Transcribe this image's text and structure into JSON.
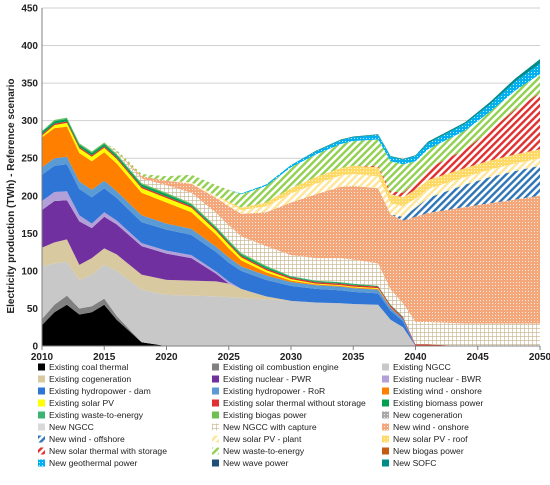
{
  "chart_data": {
    "type": "area",
    "title": "",
    "xlabel": "",
    "ylabel": "Electricity production (TWh) - Reference scenario",
    "xlim": [
      2010,
      2050
    ],
    "ylim": [
      0,
      450
    ],
    "x_ticks": [
      "2010",
      "2015",
      "2020",
      "2025",
      "2030",
      "2035",
      "2040",
      "2045",
      "2050"
    ],
    "y_ticks": [
      "0",
      "50",
      "100",
      "150",
      "200",
      "250",
      "300",
      "350",
      "400",
      "450"
    ],
    "grid": "horizontal",
    "legend_position": "bottom",
    "years": [
      2010,
      2011,
      2012,
      2013,
      2014,
      2015,
      2016,
      2018,
      2020,
      2022,
      2024,
      2025,
      2026,
      2028,
      2030,
      2032,
      2034,
      2035,
      2037,
      2038,
      2039,
      2040,
      2041,
      2044,
      2046,
      2048,
      2050
    ],
    "series": [
      {
        "name": "Existing coal thermal",
        "color": "#000000",
        "pattern": "solid",
        "values": [
          28,
          45,
          55,
          42,
          45,
          55,
          35,
          5,
          0,
          0,
          0,
          0,
          0,
          0,
          0,
          0,
          0,
          0,
          0,
          0,
          0,
          0,
          0,
          0,
          0,
          0,
          0
        ]
      },
      {
        "name": "Existing oil combustion engine",
        "color": "#808080",
        "pattern": "solid",
        "values": [
          8,
          10,
          12,
          8,
          8,
          8,
          5,
          0,
          0,
          0,
          0,
          0,
          0,
          0,
          0,
          0,
          0,
          0,
          0,
          0,
          0,
          0,
          0,
          0,
          0,
          0,
          0
        ]
      },
      {
        "name": "Existing NGCC",
        "color": "#c8c8c8",
        "pattern": "solid",
        "values": [
          70,
          55,
          45,
          38,
          42,
          45,
          60,
          70,
          68,
          67,
          66,
          65,
          64,
          62,
          60,
          58,
          57,
          56,
          55,
          35,
          25,
          0,
          0,
          0,
          0,
          0,
          0
        ]
      },
      {
        "name": "Existing cogeneration",
        "color": "#d9c9a0",
        "pattern": "solid",
        "values": [
          25,
          28,
          30,
          20,
          22,
          22,
          22,
          20,
          20,
          20,
          20,
          18,
          12,
          4,
          0,
          0,
          0,
          0,
          0,
          0,
          0,
          0,
          0,
          0,
          0,
          0,
          0
        ]
      },
      {
        "name": "Existing nuclear - PWR",
        "color": "#7030a0",
        "pattern": "solid",
        "values": [
          50,
          55,
          52,
          58,
          40,
          42,
          40,
          38,
          35,
          30,
          10,
          0,
          0,
          0,
          0,
          0,
          0,
          0,
          0,
          0,
          0,
          0,
          0,
          0,
          0,
          0,
          0
        ]
      },
      {
        "name": "Existing nuclear - BWR",
        "color": "#b4a0d8",
        "pattern": "solid",
        "values": [
          12,
          12,
          12,
          8,
          6,
          6,
          5,
          4,
          4,
          4,
          3,
          3,
          0,
          0,
          0,
          0,
          0,
          0,
          0,
          0,
          0,
          0,
          0,
          0,
          0,
          0,
          0
        ]
      },
      {
        "name": "Existing hydropower - dam",
        "color": "#2e75d6",
        "pattern": "solid",
        "values": [
          35,
          35,
          36,
          35,
          35,
          32,
          30,
          28,
          28,
          27,
          26,
          25,
          24,
          22,
          20,
          18,
          17,
          16,
          15,
          12,
          8,
          0,
          0,
          0,
          0,
          0,
          0
        ]
      },
      {
        "name": "Existing hydropower - RoR",
        "color": "#5b9bd5",
        "pattern": "solid",
        "values": [
          10,
          10,
          10,
          10,
          10,
          10,
          9,
          9,
          8,
          8,
          7,
          7,
          6,
          6,
          5,
          5,
          5,
          5,
          5,
          4,
          3,
          0,
          0,
          0,
          0,
          0,
          0
        ]
      },
      {
        "name": "Existing wind - onshore",
        "color": "#ff7f00",
        "pattern": "solid",
        "values": [
          40,
          40,
          40,
          38,
          38,
          38,
          37,
          30,
          28,
          22,
          16,
          12,
          8,
          4,
          2,
          1,
          1,
          1,
          1,
          1,
          0,
          0,
          0,
          0,
          0,
          0,
          0
        ]
      },
      {
        "name": "Existing solar PV",
        "color": "#ffff00",
        "pattern": "solid",
        "values": [
          2,
          4,
          5,
          6,
          6,
          6,
          6,
          6,
          6,
          6,
          5,
          5,
          4,
          3,
          2,
          1,
          1,
          1,
          1,
          0,
          0,
          0,
          0,
          0,
          0,
          0,
          0
        ]
      },
      {
        "name": "Existing solar thermal without storage",
        "color": "#e03030",
        "pattern": "solid",
        "values": [
          2,
          2,
          2,
          2,
          2,
          2,
          2,
          2,
          2,
          2,
          2,
          2,
          2,
          2,
          2,
          2,
          2,
          2,
          2,
          2,
          2,
          2,
          2,
          0,
          0,
          0,
          0
        ]
      },
      {
        "name": "Existing biomass power",
        "color": "#00a050",
        "pattern": "solid",
        "values": [
          3,
          3,
          3,
          3,
          3,
          3,
          3,
          3,
          3,
          2,
          2,
          2,
          2,
          2,
          1,
          1,
          1,
          1,
          1,
          1,
          1,
          0,
          0,
          0,
          0,
          0,
          0
        ]
      },
      {
        "name": "Existing waste-to-energy",
        "color": "#3cb371",
        "pattern": "solid",
        "values": [
          1,
          1,
          1,
          1,
          1,
          1,
          1,
          1,
          1,
          1,
          1,
          1,
          1,
          1,
          1,
          1,
          1,
          1,
          0,
          0,
          0,
          0,
          0,
          0,
          0,
          0,
          0
        ]
      },
      {
        "name": "Existing biogas power",
        "color": "#70c050",
        "pattern": "solid",
        "values": [
          0,
          1,
          1,
          1,
          1,
          1,
          1,
          1,
          1,
          1,
          1,
          1,
          1,
          1,
          0,
          0,
          0,
          0,
          0,
          0,
          0,
          0,
          0,
          0,
          0,
          0,
          0
        ]
      },
      {
        "name": "New cogeneration",
        "color": "#a9a9a9",
        "pattern": "dots",
        "values": [
          0,
          0,
          0,
          0,
          0,
          0,
          0,
          0,
          0,
          0,
          0,
          0,
          0,
          0,
          0,
          0,
          0,
          0,
          0,
          0,
          0,
          0,
          0,
          0,
          0,
          0,
          0
        ]
      },
      {
        "name": "New NGCC",
        "color": "#d9d9d9",
        "pattern": "solid",
        "values": [
          0,
          0,
          0,
          0,
          0,
          0,
          0,
          0,
          0,
          0,
          0,
          0,
          0,
          0,
          0,
          0,
          0,
          0,
          0,
          0,
          0,
          0,
          0,
          0,
          0,
          0,
          0
        ]
      },
      {
        "name": "New NGCC with capture",
        "color": "#c4b28a",
        "pattern": "grid",
        "values": [
          0,
          0,
          0,
          0,
          0,
          0,
          2,
          6,
          10,
          14,
          18,
          20,
          22,
          26,
          28,
          30,
          32,
          32,
          30,
          20,
          18,
          30,
          30,
          30,
          30,
          30,
          30
        ]
      },
      {
        "name": "New wind - onshore",
        "color": "#f4a77a",
        "pattern": "dots",
        "values": [
          0,
          0,
          0,
          0,
          0,
          0,
          1,
          3,
          6,
          12,
          20,
          25,
          30,
          45,
          70,
          85,
          95,
          98,
          100,
          100,
          110,
          140,
          145,
          155,
          160,
          165,
          170
        ]
      },
      {
        "name": "New wind - offshore",
        "color": "#2e75b6",
        "pattern": "hatch",
        "values": [
          0,
          0,
          0,
          0,
          0,
          0,
          0,
          0,
          0,
          0,
          0,
          0,
          0,
          0,
          0,
          0,
          0,
          0,
          0,
          0,
          5,
          12,
          20,
          30,
          35,
          38,
          40
        ]
      },
      {
        "name": "New solar PV - plant",
        "color": "#ffe699",
        "pattern": "hatch",
        "values": [
          0,
          0,
          0,
          0,
          0,
          0,
          0,
          0,
          0,
          2,
          3,
          4,
          5,
          8,
          12,
          14,
          15,
          16,
          16,
          15,
          14,
          12,
          12,
          10,
          10,
          10,
          10
        ]
      },
      {
        "name": "New solar PV - roof",
        "color": "#ffd966",
        "pattern": "dots",
        "values": [
          0,
          0,
          0,
          0,
          0,
          0,
          0,
          0,
          0,
          0,
          0,
          2,
          3,
          5,
          7,
          9,
          10,
          11,
          12,
          12,
          12,
          12,
          12,
          12,
          12,
          12,
          12
        ]
      },
      {
        "name": "New solar thermal with storage",
        "color": "#e03030",
        "pattern": "hatch",
        "values": [
          0,
          0,
          0,
          0,
          0,
          0,
          0,
          0,
          0,
          0,
          0,
          0,
          0,
          0,
          0,
          0,
          0,
          0,
          2,
          4,
          6,
          10,
          15,
          25,
          40,
          60,
          75
        ]
      },
      {
        "name": "New waste-to-energy",
        "color": "#92d050",
        "pattern": "hatch",
        "values": [
          0,
          0,
          0,
          0,
          0,
          0,
          2,
          3,
          6,
          10,
          14,
          16,
          18,
          22,
          28,
          30,
          32,
          33,
          35,
          40,
          38,
          28,
          26,
          25,
          25,
          25,
          25
        ]
      },
      {
        "name": "New biogas power",
        "color": "#c55a11",
        "pattern": "solid",
        "values": [
          0,
          0,
          0,
          0,
          0,
          0,
          0,
          0,
          0,
          0,
          0,
          0,
          0,
          0,
          0,
          0,
          0,
          0,
          0,
          0,
          0,
          0,
          0,
          0,
          0,
          0,
          0
        ]
      },
      {
        "name": "New geothermal power",
        "color": "#00b0f0",
        "pattern": "dots",
        "values": [
          0,
          0,
          0,
          0,
          0,
          0,
          0,
          0,
          0,
          0,
          0,
          0,
          1,
          2,
          3,
          4,
          5,
          5,
          6,
          6,
          6,
          7,
          8,
          9,
          10,
          12,
          14
        ]
      },
      {
        "name": "New wave power",
        "color": "#1f4e79",
        "pattern": "solid",
        "values": [
          0,
          0,
          0,
          0,
          0,
          0,
          0,
          0,
          0,
          0,
          0,
          0,
          0,
          0,
          0,
          0,
          0,
          0,
          0,
          0,
          0,
          0,
          0,
          0,
          0,
          0,
          0
        ]
      },
      {
        "name": "New SOFC",
        "color": "#008b8b",
        "pattern": "solid",
        "values": [
          0,
          0,
          0,
          0,
          0,
          0,
          0,
          0,
          0,
          0,
          0,
          0,
          0,
          0,
          0,
          1,
          1,
          1,
          1,
          1,
          1,
          1,
          2,
          2,
          3,
          4,
          6
        ]
      }
    ]
  }
}
